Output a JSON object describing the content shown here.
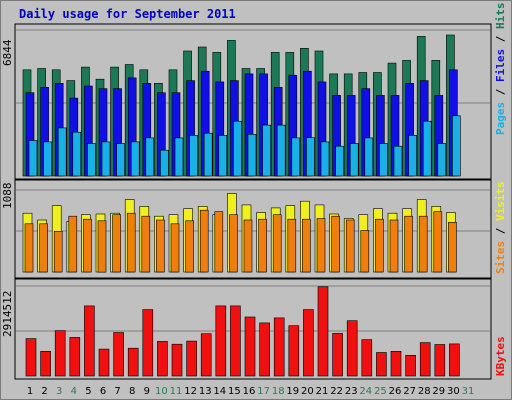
{
  "chart_data": [
    {
      "type": "bar",
      "title": "Daily usage for September 2011",
      "ytick_label": "6844",
      "ylim": [
        0,
        6844
      ],
      "categories": [
        "1",
        "2",
        "3",
        "4",
        "5",
        "6",
        "7",
        "8",
        "9",
        "10",
        "11",
        "12",
        "13",
        "14",
        "15",
        "16",
        "17",
        "18",
        "19",
        "20",
        "21",
        "22",
        "23",
        "24",
        "25",
        "26",
        "27",
        "28",
        "29",
        "30",
        "31"
      ],
      "weekend_days": [
        "3",
        "4",
        "10",
        "11",
        "17",
        "18",
        "24",
        "25",
        "31"
      ],
      "series": [
        {
          "name": "Hits",
          "color": "#1b7a55",
          "values": [
            4977,
            5040,
            4977,
            4473,
            5103,
            4536,
            5103,
            5229,
            4977,
            4347,
            4977,
            5859,
            6048,
            5796,
            6356,
            5040,
            5040,
            5796,
            5796,
            5985,
            5859,
            4788,
            4788,
            4851,
            4851,
            5292,
            5418,
            6545,
            5418,
            6608,
            null
          ]
        },
        {
          "name": "Files",
          "color": "#1010e6",
          "values": [
            3906,
            4158,
            4347,
            3654,
            4221,
            4095,
            4095,
            4599,
            4347,
            3906,
            3906,
            4473,
            4914,
            4410,
            4473,
            4788,
            4788,
            4158,
            4725,
            4914,
            4410,
            3780,
            3780,
            4095,
            3780,
            3780,
            4347,
            4473,
            3780,
            4977,
            null
          ]
        },
        {
          "name": "Pages",
          "color": "#18b0e6",
          "values": [
            1663,
            1599,
            2256,
            2051,
            1523,
            1599,
            1523,
            1599,
            1788,
            1208,
            1788,
            1901,
            2004,
            1901,
            2571,
            1953,
            2384,
            2384,
            1788,
            1800,
            1599,
            1397,
            1523,
            1788,
            1523,
            1397,
            1901,
            2571,
            1523,
            2823,
            null
          ]
        }
      ]
    },
    {
      "type": "bar",
      "ytick_label": "1088",
      "ylim": [
        0,
        1088
      ],
      "categories": [
        "1",
        "2",
        "3",
        "4",
        "5",
        "6",
        "7",
        "8",
        "9",
        "10",
        "11",
        "12",
        "13",
        "14",
        "15",
        "16",
        "17",
        "18",
        "19",
        "20",
        "21",
        "22",
        "23",
        "24",
        "25",
        "26",
        "27",
        "28",
        "29",
        "30",
        "31"
      ],
      "series": [
        {
          "name": "Visits",
          "color": "#f0f020",
          "values": [
            780,
            690,
            880,
            670,
            760,
            770,
            780,
            960,
            870,
            740,
            760,
            840,
            870,
            760,
            1040,
            890,
            790,
            850,
            880,
            940,
            890,
            770,
            710,
            760,
            840,
            780,
            840,
            960,
            870,
            790,
            null
          ]
        },
        {
          "name": "Sites",
          "color": "#f07e0e",
          "values": [
            640,
            640,
            540,
            740,
            700,
            680,
            760,
            780,
            740,
            690,
            640,
            680,
            820,
            800,
            760,
            690,
            700,
            760,
            700,
            700,
            710,
            740,
            690,
            550,
            700,
            690,
            740,
            740,
            800,
            660,
            null
          ]
        }
      ]
    },
    {
      "type": "bar",
      "ytick_label": "2914512",
      "ylim": [
        0,
        2914512
      ],
      "categories": [
        "1",
        "2",
        "3",
        "4",
        "5",
        "6",
        "7",
        "8",
        "9",
        "10",
        "11",
        "12",
        "13",
        "14",
        "15",
        "16",
        "17",
        "18",
        "19",
        "20",
        "21",
        "22",
        "23",
        "24",
        "25",
        "26",
        "27",
        "28",
        "29",
        "30",
        "31"
      ],
      "series": [
        {
          "name": "KBytes",
          "color": "#f01010",
          "values": [
            1210000,
            800000,
            1470000,
            1250000,
            2270000,
            870000,
            1410000,
            900000,
            2150000,
            1120000,
            1030000,
            1130000,
            1370000,
            2270000,
            2270000,
            1910000,
            1720000,
            1880000,
            1630000,
            2150000,
            2890000,
            1380000,
            1790000,
            1180000,
            760000,
            800000,
            670000,
            1080000,
            1020000,
            1040000,
            null
          ]
        }
      ]
    }
  ]
}
